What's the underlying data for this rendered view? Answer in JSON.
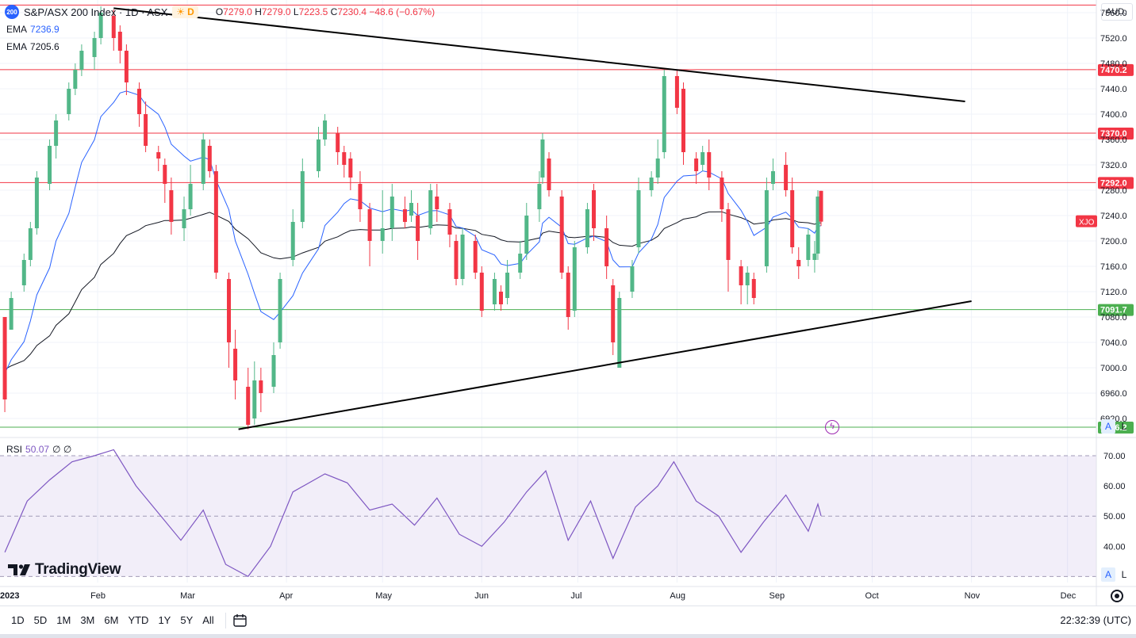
{
  "header": {
    "symbol_badge": "200",
    "title": "S&P/ASX 200 Index · 1D · ASX",
    "interval_badge": "D",
    "ohlc": {
      "o_label": "O",
      "o": "7279.0",
      "h_label": "H",
      "h": "7279.0",
      "l_label": "L",
      "l": "7223.5",
      "c_label": "C",
      "c": "7230.4",
      "change": "−48.6 (−0.67%)"
    },
    "ema1_label": "EMA",
    "ema1_value": "7236.9",
    "ema2_label": "EMA",
    "ema2_value": "7205.6",
    "rsi_label": "RSI",
    "rsi_value": "50.07",
    "rsi_extra": "∅ ∅"
  },
  "currency": "AUD",
  "scale_buttons": {
    "auto": "A",
    "log": "L"
  },
  "logo_text": "TradingView",
  "range_buttons": [
    "1D",
    "5D",
    "1M",
    "3M",
    "6M",
    "YTD",
    "1Y",
    "5Y",
    "All"
  ],
  "clock": "22:32:39 (UTC)",
  "colors": {
    "up": "#26a69a",
    "up_fill": "#52b788",
    "down": "#f23645",
    "ema_fast": "#2962ff",
    "ema_slow": "#131722",
    "rsi": "#7e57c2",
    "resistance": "#f23645",
    "support": "#4caf50"
  },
  "chart_data": {
    "type": "candlestick",
    "symbol_label": "XJO",
    "price_axis": {
      "ticks": [
        "7560.0",
        "7520.0",
        "7480.0",
        "7440.0",
        "7400.0",
        "7360.0",
        "7320.0",
        "7280.0",
        "7240.0",
        "7200.0",
        "7160.0",
        "7120.0",
        "7080.0",
        "7040.0",
        "7000.0",
        "6960.0",
        "6920.0"
      ],
      "range": [
        6895,
        7580
      ]
    },
    "time_axis": {
      "labels": [
        "2023",
        "Feb",
        "Mar",
        "Apr",
        "May",
        "Jun",
        "Jul",
        "Aug",
        "Sep",
        "Oct",
        "Nov",
        "Dec"
      ]
    },
    "levels": [
      {
        "value": 7572,
        "label": "",
        "color": "resistance"
      },
      {
        "value": 7470.2,
        "label": "7470.2",
        "color": "resistance"
      },
      {
        "value": 7370.0,
        "label": "7370.0",
        "color": "resistance"
      },
      {
        "value": 7292.0,
        "label": "7292.0",
        "color": "resistance"
      },
      {
        "value": 7091.7,
        "label": "7091.7",
        "color": "support"
      },
      {
        "value": 6906.2,
        "label": "6906.2",
        "color": "support"
      }
    ],
    "trendlines": [
      {
        "from": [
          "2023-02-06",
          7567
        ],
        "to": [
          "2023-10-30",
          7420
        ]
      },
      {
        "from": [
          "2023-03-17",
          6903
        ],
        "to": [
          "2023-11-01",
          7105
        ]
      }
    ],
    "candles_approx": [
      [
        "2023-01-03",
        7080,
        6950,
        7060,
        6930
      ],
      [
        "2023-01-05",
        7060,
        7110,
        7060,
        7120
      ],
      [
        "2023-01-09",
        7130,
        7170,
        7120,
        7180
      ],
      [
        "2023-01-11",
        7170,
        7220,
        7160,
        7230
      ],
      [
        "2023-01-13",
        7220,
        7300,
        7210,
        7310
      ],
      [
        "2023-01-17",
        7290,
        7350,
        7280,
        7360
      ],
      [
        "2023-01-19",
        7350,
        7390,
        7330,
        7400
      ],
      [
        "2023-01-23",
        7400,
        7440,
        7390,
        7450
      ],
      [
        "2023-01-25",
        7440,
        7470,
        7430,
        7480
      ],
      [
        "2023-01-27",
        7470,
        7500,
        7460,
        7510
      ],
      [
        "2023-01-31",
        7490,
        7520,
        7470,
        7530
      ],
      [
        "2023-02-02",
        7520,
        7560,
        7510,
        7570
      ],
      [
        "2023-02-06",
        7555,
        7520,
        7500,
        7565
      ],
      [
        "2023-02-08",
        7530,
        7500,
        7480,
        7540
      ],
      [
        "2023-02-10",
        7500,
        7450,
        7430,
        7510
      ],
      [
        "2023-02-14",
        7440,
        7400,
        7380,
        7450
      ],
      [
        "2023-02-16",
        7400,
        7350,
        7340,
        7420
      ],
      [
        "2023-02-20",
        7340,
        7330,
        7310,
        7350
      ],
      [
        "2023-02-22",
        7320,
        7290,
        7260,
        7330
      ],
      [
        "2023-02-24",
        7280,
        7230,
        7210,
        7300
      ],
      [
        "2023-02-28",
        7220,
        7250,
        7200,
        7270
      ],
      [
        "2023-03-02",
        7250,
        7290,
        7240,
        7320
      ],
      [
        "2023-03-06",
        7290,
        7360,
        7280,
        7370
      ],
      [
        "2023-03-08",
        7350,
        7310,
        7300,
        7360
      ],
      [
        "2023-03-10",
        7310,
        7150,
        7140,
        7320
      ],
      [
        "2023-03-14",
        7140,
        7040,
        7000,
        7150
      ],
      [
        "2023-03-16",
        7030,
        6980,
        6950,
        7060
      ],
      [
        "2023-03-20",
        6970,
        6910,
        6903,
        7000
      ],
      [
        "2023-03-22",
        6920,
        6980,
        6910,
        7010
      ],
      [
        "2023-03-24",
        6980,
        6960,
        6930,
        7000
      ],
      [
        "2023-03-28",
        6970,
        7020,
        6960,
        7040
      ],
      [
        "2023-03-30",
        7040,
        7140,
        7030,
        7150
      ],
      [
        "2023-04-03",
        7170,
        7230,
        7160,
        7250
      ],
      [
        "2023-04-06",
        7230,
        7310,
        7220,
        7330
      ],
      [
        "2023-04-11",
        7310,
        7360,
        7300,
        7380
      ],
      [
        "2023-04-13",
        7360,
        7390,
        7350,
        7400
      ],
      [
        "2023-04-17",
        7370,
        7340,
        7320,
        7380
      ],
      [
        "2023-04-19",
        7340,
        7320,
        7300,
        7350
      ],
      [
        "2023-04-21",
        7330,
        7300,
        7280,
        7340
      ],
      [
        "2023-04-24",
        7290,
        7250,
        7230,
        7310
      ],
      [
        "2023-04-27",
        7250,
        7200,
        7160,
        7260
      ],
      [
        "2023-05-01",
        7200,
        7220,
        7180,
        7280
      ],
      [
        "2023-05-04",
        7220,
        7270,
        7200,
        7290
      ],
      [
        "2023-05-08",
        7250,
        7230,
        7220,
        7270
      ],
      [
        "2023-05-10",
        7240,
        7260,
        7230,
        7280
      ],
      [
        "2023-05-12",
        7240,
        7200,
        7170,
        7260
      ],
      [
        "2023-05-16",
        7220,
        7280,
        7210,
        7290
      ],
      [
        "2023-05-18",
        7270,
        7250,
        7230,
        7290
      ],
      [
        "2023-05-22",
        7250,
        7210,
        7190,
        7260
      ],
      [
        "2023-05-24",
        7200,
        7140,
        7130,
        7210
      ],
      [
        "2023-05-26",
        7140,
        7210,
        7130,
        7220
      ],
      [
        "2023-05-30",
        7200,
        7150,
        7140,
        7210
      ],
      [
        "2023-06-01",
        7150,
        7090,
        7080,
        7160
      ],
      [
        "2023-06-05",
        7100,
        7140,
        7090,
        7150
      ],
      [
        "2023-06-07",
        7120,
        7100,
        7090,
        7130
      ],
      [
        "2023-06-09",
        7110,
        7150,
        7100,
        7170
      ],
      [
        "2023-06-13",
        7150,
        7180,
        7140,
        7200
      ],
      [
        "2023-06-15",
        7180,
        7240,
        7170,
        7260
      ],
      [
        "2023-06-19",
        7250,
        7290,
        7230,
        7310
      ],
      [
        "2023-06-20",
        7300,
        7360,
        7290,
        7370
      ],
      [
        "2023-06-22",
        7330,
        7280,
        7270,
        7340
      ],
      [
        "2023-06-26",
        7270,
        7150,
        7140,
        7280
      ],
      [
        "2023-06-28",
        7150,
        7080,
        7060,
        7160
      ],
      [
        "2023-06-30",
        7090,
        7190,
        7080,
        7200
      ],
      [
        "2023-07-04",
        7190,
        7250,
        7180,
        7260
      ],
      [
        "2023-07-06",
        7280,
        7220,
        7200,
        7290
      ],
      [
        "2023-07-10",
        7220,
        7160,
        7140,
        7240
      ],
      [
        "2023-07-12",
        7130,
        7040,
        7020,
        7140
      ],
      [
        "2023-07-14",
        7000,
        7110,
        7000,
        7120
      ],
      [
        "2023-07-18",
        7120,
        7160,
        7110,
        7170
      ],
      [
        "2023-07-20",
        7190,
        7280,
        7180,
        7300
      ],
      [
        "2023-07-24",
        7280,
        7300,
        7270,
        7310
      ],
      [
        "2023-07-26",
        7300,
        7330,
        7290,
        7360
      ],
      [
        "2023-07-28",
        7340,
        7460,
        7330,
        7470
      ],
      [
        "2023-08-01",
        7460,
        7410,
        7400,
        7470
      ],
      [
        "2023-08-03",
        7440,
        7340,
        7320,
        7450
      ],
      [
        "2023-08-07",
        7330,
        7310,
        7290,
        7340
      ],
      [
        "2023-08-09",
        7320,
        7340,
        7310,
        7350
      ],
      [
        "2023-08-11",
        7340,
        7300,
        7280,
        7360
      ],
      [
        "2023-08-15",
        7300,
        7250,
        7230,
        7310
      ],
      [
        "2023-08-17",
        7250,
        7170,
        7120,
        7260
      ],
      [
        "2023-08-21",
        7160,
        7130,
        7100,
        7170
      ],
      [
        "2023-08-23",
        7130,
        7150,
        7100,
        7160
      ],
      [
        "2023-08-25",
        7140,
        7110,
        7100,
        7150
      ],
      [
        "2023-08-29",
        7160,
        7280,
        7150,
        7300
      ],
      [
        "2023-08-31",
        7290,
        7310,
        7280,
        7330
      ],
      [
        "2023-09-04",
        7320,
        7280,
        7270,
        7340
      ],
      [
        "2023-09-06",
        7280,
        7190,
        7180,
        7300
      ],
      [
        "2023-09-08",
        7170,
        7160,
        7140,
        7190
      ],
      [
        "2023-09-11",
        7170,
        7210,
        7160,
        7220
      ],
      [
        "2023-09-13",
        7170,
        7180,
        7150,
        7200
      ],
      [
        "2023-09-14",
        7180,
        7270,
        7170,
        7280
      ],
      [
        "2023-09-15",
        7279.0,
        7230.4,
        7223.5,
        7279.0
      ]
    ],
    "ema_fast_label": "EMA 7236.9",
    "ema_slow_label": "EMA 7205.6",
    "rsi": {
      "axis_ticks": [
        "70.00",
        "60.00",
        "50.00",
        "40.00"
      ],
      "range": [
        28,
        75
      ],
      "overbought": 70,
      "middle": 50,
      "oversold": 30,
      "values_approx": [
        [
          "2023-01-03",
          38
        ],
        [
          "2023-01-10",
          55
        ],
        [
          "2023-01-17",
          62
        ],
        [
          "2023-01-24",
          68
        ],
        [
          "2023-01-31",
          70
        ],
        [
          "2023-02-06",
          72
        ],
        [
          "2023-02-13",
          60
        ],
        [
          "2023-02-20",
          51
        ],
        [
          "2023-02-27",
          42
        ],
        [
          "2023-03-06",
          52
        ],
        [
          "2023-03-13",
          34
        ],
        [
          "2023-03-20",
          30
        ],
        [
          "2023-03-27",
          40
        ],
        [
          "2023-04-03",
          58
        ],
        [
          "2023-04-13",
          64
        ],
        [
          "2023-04-20",
          61
        ],
        [
          "2023-04-27",
          52
        ],
        [
          "2023-05-04",
          54
        ],
        [
          "2023-05-11",
          47
        ],
        [
          "2023-05-18",
          56
        ],
        [
          "2023-05-25",
          44
        ],
        [
          "2023-06-01",
          40
        ],
        [
          "2023-06-08",
          48
        ],
        [
          "2023-06-15",
          58
        ],
        [
          "2023-06-21",
          65
        ],
        [
          "2023-06-28",
          42
        ],
        [
          "2023-07-05",
          55
        ],
        [
          "2023-07-12",
          36
        ],
        [
          "2023-07-19",
          53
        ],
        [
          "2023-07-26",
          60
        ],
        [
          "2023-07-31",
          68
        ],
        [
          "2023-08-07",
          55
        ],
        [
          "2023-08-14",
          50
        ],
        [
          "2023-08-21",
          38
        ],
        [
          "2023-08-28",
          48
        ],
        [
          "2023-09-04",
          57
        ],
        [
          "2023-09-11",
          45
        ],
        [
          "2023-09-14",
          54
        ],
        [
          "2023-09-15",
          50.07
        ]
      ]
    }
  }
}
